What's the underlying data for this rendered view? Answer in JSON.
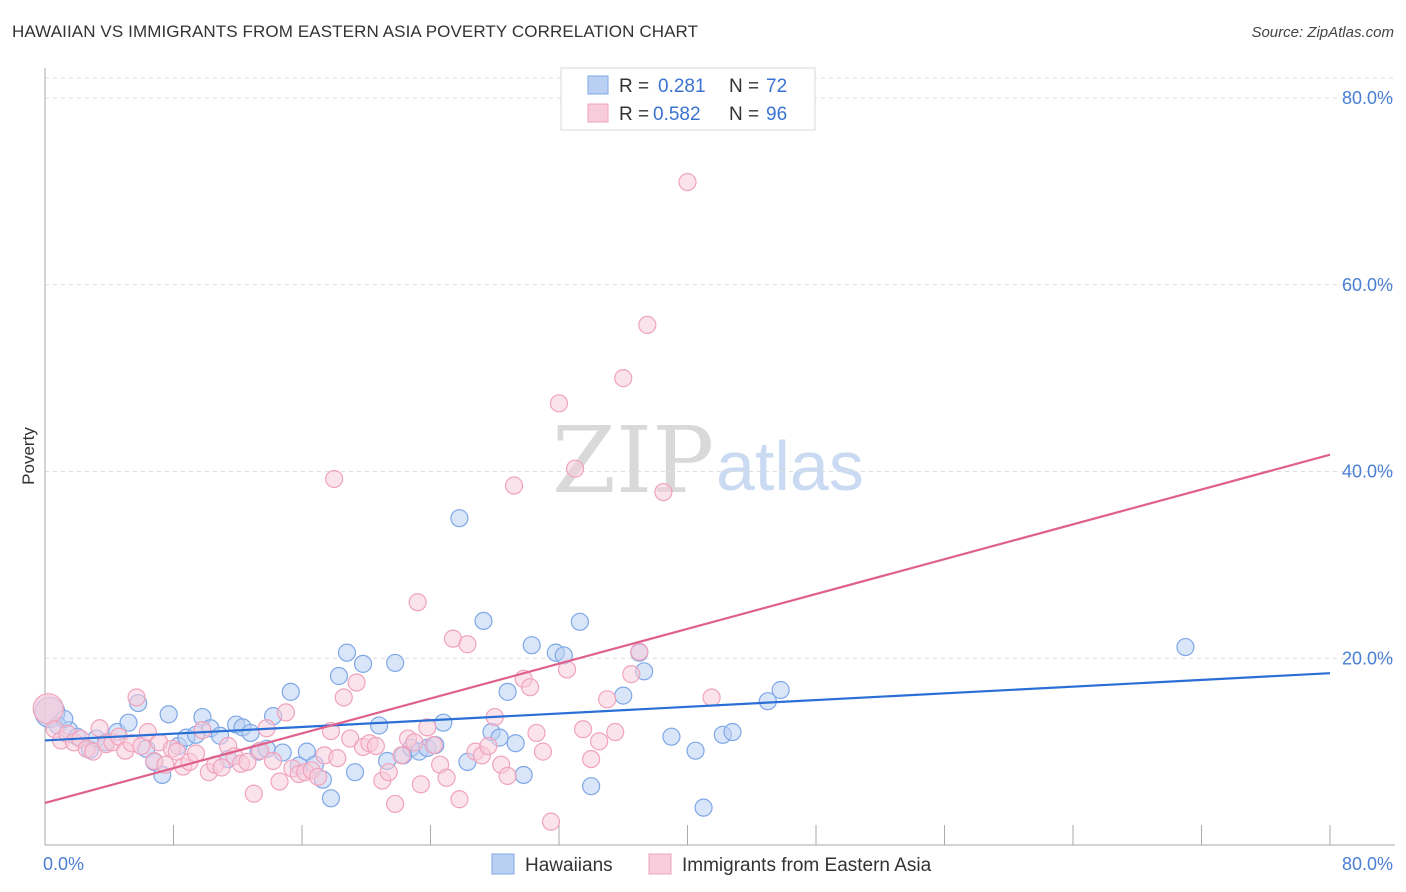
{
  "title": "HAWAIIAN VS IMMIGRANTS FROM EASTERN ASIA POVERTY CORRELATION CHART",
  "source": "Source: ZipAtlas.com",
  "watermark": {
    "zip": "ZIP",
    "atlas": "atlas"
  },
  "legend": {
    "r_label": "R =",
    "n_label": "N =",
    "rows": [
      {
        "r": "0.281",
        "n": "72"
      },
      {
        "r": "0.582",
        "n": "96"
      }
    ]
  },
  "chart_data": {
    "type": "scatter",
    "xlabel": "",
    "ylabel": "Poverty",
    "xlim": [
      0,
      80
    ],
    "ylim": [
      0,
      80
    ],
    "x_tick_labels": [
      "0.0%",
      "80.0%"
    ],
    "y_ticks": [
      20,
      40,
      60,
      80
    ],
    "y_tick_labels": [
      "20.0%",
      "40.0%",
      "60.0%",
      "80.0%"
    ],
    "grid": true,
    "legend_position": "top-center",
    "series": [
      {
        "name": "Hawaiians",
        "color": "#7fa8e6",
        "fill": "#b9d0f2",
        "trend_color": "#2a6fd6",
        "r": 0.281,
        "n": 72,
        "trend": {
          "x": [
            0,
            80
          ],
          "y": [
            11.2,
            18.4
          ]
        },
        "points": [
          [
            0.3,
            14.2
          ],
          [
            0.8,
            12.8
          ],
          [
            1.5,
            12.3
          ],
          [
            2.0,
            11.6
          ],
          [
            2.8,
            10.2
          ],
          [
            3.2,
            11.4
          ],
          [
            3.8,
            11.0
          ],
          [
            4.5,
            12.1
          ],
          [
            5.2,
            13.1
          ],
          [
            5.8,
            15.2
          ],
          [
            6.3,
            10.3
          ],
          [
            6.8,
            8.9
          ],
          [
            7.3,
            7.5
          ],
          [
            7.7,
            14.0
          ],
          [
            8.3,
            10.6
          ],
          [
            8.8,
            11.5
          ],
          [
            9.4,
            11.8
          ],
          [
            9.8,
            13.7
          ],
          [
            10.3,
            12.5
          ],
          [
            10.9,
            11.7
          ],
          [
            11.4,
            9.2
          ],
          [
            11.9,
            12.9
          ],
          [
            12.3,
            12.6
          ],
          [
            12.8,
            12.0
          ],
          [
            13.3,
            10.0
          ],
          [
            13.8,
            10.3
          ],
          [
            14.2,
            13.8
          ],
          [
            14.8,
            9.9
          ],
          [
            15.3,
            16.4
          ],
          [
            15.8,
            8.5
          ],
          [
            16.3,
            10.0
          ],
          [
            16.8,
            8.6
          ],
          [
            17.3,
            7.0
          ],
          [
            17.8,
            5.0
          ],
          [
            18.3,
            18.1
          ],
          [
            18.8,
            20.6
          ],
          [
            19.3,
            7.8
          ],
          [
            19.8,
            19.4
          ],
          [
            20.8,
            12.8
          ],
          [
            21.3,
            9.0
          ],
          [
            21.8,
            19.5
          ],
          [
            22.3,
            9.6
          ],
          [
            22.8,
            10.4
          ],
          [
            23.3,
            10.0
          ],
          [
            23.8,
            10.4
          ],
          [
            24.3,
            10.7
          ],
          [
            24.8,
            13.1
          ],
          [
            25.8,
            35.0
          ],
          [
            26.3,
            8.9
          ],
          [
            27.3,
            24.0
          ],
          [
            27.8,
            12.1
          ],
          [
            28.3,
            11.5
          ],
          [
            28.8,
            16.4
          ],
          [
            29.3,
            10.9
          ],
          [
            29.8,
            7.5
          ],
          [
            30.3,
            21.4
          ],
          [
            31.8,
            20.6
          ],
          [
            32.3,
            20.3
          ],
          [
            33.3,
            23.9
          ],
          [
            34.0,
            6.3
          ],
          [
            36.0,
            16.0
          ],
          [
            37.0,
            20.6
          ],
          [
            37.3,
            18.6
          ],
          [
            39.0,
            11.6
          ],
          [
            40.5,
            10.1
          ],
          [
            41.0,
            4.0
          ],
          [
            42.2,
            11.8
          ],
          [
            42.8,
            12.1
          ],
          [
            45.0,
            15.4
          ],
          [
            45.8,
            16.6
          ],
          [
            71.0,
            21.2
          ],
          [
            1.2,
            13.5
          ]
        ]
      },
      {
        "name": "Immigrants from Eastern Asia",
        "color": "#f0a3bd",
        "fill": "#f8ccdb",
        "trend_color": "#e0608c",
        "r": 0.582,
        "n": 96,
        "trend": {
          "x": [
            0,
            80
          ],
          "y": [
            4.5,
            41.8
          ]
        },
        "points": [
          [
            0.2,
            14.6
          ],
          [
            0.6,
            12.4
          ],
          [
            1.0,
            11.2
          ],
          [
            1.4,
            11.9
          ],
          [
            1.8,
            11.0
          ],
          [
            2.2,
            11.4
          ],
          [
            2.6,
            10.3
          ],
          [
            3.0,
            10.0
          ],
          [
            3.4,
            12.5
          ],
          [
            3.8,
            10.8
          ],
          [
            4.2,
            11.0
          ],
          [
            4.6,
            11.6
          ],
          [
            5.0,
            10.1
          ],
          [
            5.4,
            10.9
          ],
          [
            5.7,
            15.8
          ],
          [
            6.0,
            10.6
          ],
          [
            6.4,
            12.1
          ],
          [
            6.8,
            9.0
          ],
          [
            7.1,
            11.0
          ],
          [
            7.5,
            8.6
          ],
          [
            7.9,
            10.3
          ],
          [
            8.2,
            10.0
          ],
          [
            8.6,
            8.4
          ],
          [
            9.0,
            8.9
          ],
          [
            9.4,
            9.8
          ],
          [
            9.8,
            12.3
          ],
          [
            10.2,
            7.8
          ],
          [
            10.6,
            8.6
          ],
          [
            11.0,
            8.3
          ],
          [
            11.4,
            10.6
          ],
          [
            11.8,
            9.5
          ],
          [
            12.2,
            8.7
          ],
          [
            12.6,
            8.9
          ],
          [
            13.0,
            5.5
          ],
          [
            13.4,
            10.1
          ],
          [
            13.8,
            12.5
          ],
          [
            14.2,
            9.0
          ],
          [
            14.6,
            6.8
          ],
          [
            15.0,
            14.2
          ],
          [
            15.4,
            8.2
          ],
          [
            15.8,
            7.6
          ],
          [
            16.2,
            7.8
          ],
          [
            16.6,
            8.0
          ],
          [
            17.0,
            7.3
          ],
          [
            17.4,
            9.6
          ],
          [
            17.8,
            12.2
          ],
          [
            18.2,
            9.3
          ],
          [
            18.6,
            15.8
          ],
          [
            19.0,
            11.4
          ],
          [
            19.4,
            17.4
          ],
          [
            19.8,
            10.5
          ],
          [
            20.2,
            10.9
          ],
          [
            20.6,
            10.6
          ],
          [
            21.0,
            6.9
          ],
          [
            21.4,
            7.8
          ],
          [
            21.8,
            4.4
          ],
          [
            22.2,
            9.6
          ],
          [
            22.6,
            11.4
          ],
          [
            23.0,
            11.0
          ],
          [
            23.4,
            6.5
          ],
          [
            23.8,
            12.6
          ],
          [
            24.2,
            10.7
          ],
          [
            24.6,
            8.6
          ],
          [
            25.0,
            7.2
          ],
          [
            25.4,
            22.1
          ],
          [
            25.8,
            4.9
          ],
          [
            26.3,
            21.5
          ],
          [
            26.8,
            10.0
          ],
          [
            27.2,
            9.6
          ],
          [
            27.6,
            10.6
          ],
          [
            28.0,
            13.7
          ],
          [
            28.4,
            8.6
          ],
          [
            28.8,
            7.4
          ],
          [
            29.2,
            38.5
          ],
          [
            29.8,
            17.8
          ],
          [
            30.2,
            16.9
          ],
          [
            30.6,
            12.0
          ],
          [
            31.0,
            10.0
          ],
          [
            31.5,
            2.5
          ],
          [
            32.0,
            47.3
          ],
          [
            32.5,
            18.8
          ],
          [
            33.0,
            40.3
          ],
          [
            33.5,
            12.4
          ],
          [
            34.0,
            9.2
          ],
          [
            34.5,
            11.1
          ],
          [
            35.0,
            15.6
          ],
          [
            35.5,
            12.1
          ],
          [
            36.0,
            50.0
          ],
          [
            36.5,
            18.3
          ],
          [
            37.0,
            20.7
          ],
          [
            37.5,
            55.7
          ],
          [
            38.5,
            37.8
          ],
          [
            40.0,
            71.0
          ],
          [
            18.0,
            39.2
          ],
          [
            23.2,
            26.0
          ],
          [
            41.5,
            15.8
          ]
        ]
      }
    ]
  },
  "bottom_legend": [
    {
      "label": "Hawaiians"
    },
    {
      "label": "Immigrants from Eastern Asia"
    }
  ]
}
